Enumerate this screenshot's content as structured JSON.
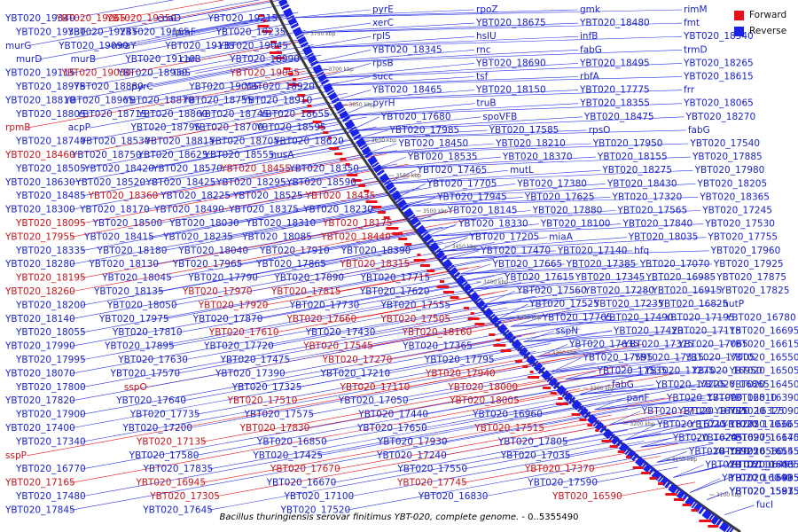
{
  "legend": {
    "forward_label": "Forward",
    "reverse_label": "Reverse",
    "forward_color": "#e8111a",
    "reverse_color": "#1a22e8"
  },
  "caption": {
    "species": "Bacillus thuringiensis serovar finitimus YBT-020, complete genome.",
    "range": " - 0..5355490"
  },
  "ticks": [
    "3750 kbp",
    "3700 kbp",
    "3650 kbp",
    "3600 kbp",
    "3550 kbp",
    "3500 kbp",
    "3450 kbp",
    "3400 kbp",
    "3350 kbp",
    "3300 kbp",
    "3250 kbp",
    "3200 kbp",
    "3150 kbp",
    "3100 kbp"
  ],
  "inner_labels": [
    "YBT020_19340",
    "YBT020_19265",
    "YBT020_19350",
    "coaD",
    "YBT020_19215",
    "YBT020_19330",
    "YBT020_19245",
    "YBT020_19165",
    "rpmF",
    "YBT020_19235",
    "murG",
    "YBT020_19090",
    "mraY",
    "YBT020_19135",
    "YBT020_19045",
    "murD",
    "murB",
    "YBT020_19110",
    "carB",
    "YBT020_18990",
    "YBT020_19115",
    "YBT020_19030",
    "YBT020_18930",
    "ileS",
    "YBT020_19055",
    "YBT020_18975",
    "YBT020_18880",
    "pyrC",
    "YBT020_19015",
    "YBT020_18920",
    "YBT020_18810",
    "YBT020_18965",
    "YBT020_18870",
    "YBT020_18755",
    "YBT020_18910",
    "YBT020_18805",
    "YBT020_18715",
    "YBT020_18860",
    "YBT020_18745",
    "YBT020_18655",
    "rpmB",
    "acpP",
    "YBT020_18795",
    "YBT020_18700",
    "YBT020_18595",
    "YBT020_18740",
    "YBT020_18530",
    "YBT020_18815",
    "YBT020_18705",
    "YBT020_18620",
    "YBT020_18460",
    "YBT020_18750",
    "YBT020_18625",
    "YBT020_18555",
    "nusA",
    "YBT020_18505",
    "YBT020_18420",
    "YBT020_18570",
    "YBT020_18455",
    "YBT020_18350",
    "YBT020_18630",
    "YBT020_18520",
    "YBT020_18425",
    "YBT020_18295",
    "YBT020_18590",
    "YBT020_18485",
    "YBT020_18360",
    "YBT020_18225",
    "YBT020_18525",
    "YBT020_18435",
    "YBT020_18300",
    "YBT020_18170",
    "YBT020_18490",
    "YBT020_18375",
    "YBT020_18230",
    "YBT020_18095",
    "YBT020_18500",
    "YBT020_18030",
    "YBT020_18310",
    "YBT020_18175",
    "YBT020_17955",
    "YBT020_18415",
    "YBT020_18235",
    "YBT020_18085",
    "YBT020_18440",
    "YBT020_18335",
    "YBT020_18180",
    "YBT020_18040",
    "YBT020_17910",
    "YBT020_18390",
    "YBT020_18280",
    "YBT020_18130",
    "YBT020_17965",
    "YBT020_17865",
    "YBT020_18315",
    "YBT020_18195",
    "YBT020_18045",
    "YBT020_17790",
    "YBT020_17890",
    "YBT020_17715",
    "YBT020_18260",
    "YBT020_18135",
    "YBT020_17970",
    "YBT020_17815",
    "YBT020_17620",
    "YBT020_18200",
    "YBT020_18050",
    "YBT020_17920",
    "YBT020_17730",
    "YBT020_17555",
    "YBT020_18140",
    "YBT020_17975",
    "YBT020_17870",
    "YBT020_17660",
    "YBT020_17505",
    "YBT020_18055",
    "YBT020_17810",
    "YBT020_17610",
    "YBT020_17430",
    "YBT020_18160",
    "YBT020_17990",
    "YBT020_17895",
    "YBT020_17720",
    "YBT020_17545",
    "YBT020_17365",
    "YBT020_17995",
    "YBT020_17630",
    "YBT020_17475",
    "YBT020_17270",
    "YBT020_17795",
    "YBT020_18070",
    "YBT020_17570",
    "YBT020_17390",
    "YBT020_17210",
    "YBT020_17940",
    "YBT020_17800",
    "sspO",
    "YBT020_17325",
    "YBT020_17110",
    "YBT020_18000",
    "YBT020_17820",
    "YBT020_17640",
    "YBT020_17510",
    "YBT020_17050",
    "YBT020_18005",
    "YBT020_17900",
    "YBT020_17735",
    "YBT020_17575",
    "YBT020_17440",
    "YBT020_16960",
    "YBT020_17400",
    "YBT020_17200",
    "YBT020_17830",
    "YBT020_17650",
    "YBT020_17515",
    "YBT020_17340",
    "YBT020_17135",
    "YBT020_16850",
    "YBT020_17930",
    "YBT020_17805",
    "sspP",
    "YBT020_17580",
    "YBT020_17425",
    "YBT020_17240",
    "YBT020_17035",
    "YBT020_16770",
    "YBT020_17835",
    "YBT020_17670",
    "YBT020_17550",
    "YBT020_17370",
    "YBT020_17165",
    "YBT020_16945",
    "YBT020_16670",
    "YBT020_17745",
    "YBT020_17590",
    "YBT020_17480",
    "YBT020_17305",
    "YBT020_17100",
    "YBT020_16830",
    "YBT020_16590",
    "YBT020_17845",
    "YBT020_17645",
    "YBT020_17520"
  ],
  "outer_labels": [
    "pyrE",
    "rpoZ",
    "gmk",
    "rimM",
    "xerC",
    "YBT020_18675",
    "YBT020_18480",
    "fmt",
    "rplS",
    "hslU",
    "infB",
    "YBT020_18540",
    "YBT020_18345",
    "rnc",
    "fabG",
    "trmD",
    "rpsB",
    "YBT020_18690",
    "YBT020_18495",
    "YBT020_18265",
    "succ",
    "tsf",
    "rbfA",
    "YBT020_18615",
    "YBT020_18465",
    "YBT020_18150",
    "YBT020_17775",
    "frr",
    "pyrH",
    "truB",
    "YBT020_18355",
    "YBT020_18065",
    "YBT020_17680",
    "spoVFB",
    "YBT020_18475",
    "YBT020_18270",
    "YBT020_17985",
    "YBT020_17585",
    "rpsO",
    "fabG",
    "YBT020_18450",
    "YBT020_18210",
    "YBT020_17950",
    "YBT020_17540",
    "YBT020_18535",
    "YBT020_18370",
    "YBT020_18155",
    "YBT020_17885",
    "YBT020_17465",
    "mutL",
    "YBT020_18275",
    "YBT020_17980",
    "YBT020_17705",
    "YBT020_17380",
    "YBT020_18430",
    "YBT020_18205",
    "YBT020_17945",
    "YBT020_17625",
    "YBT020_17320",
    "YBT020_18365",
    "YBT020_18145",
    "YBT020_17880",
    "YBT020_17565",
    "YBT020_17245",
    "YBT020_18330",
    "YBT020_18100",
    "YBT020_17840",
    "YBT020_17530",
    "YBT020_17205",
    "miaA",
    "YBT020_18035",
    "YBT020_17755",
    "YBT020_17470",
    "YBT020_17140",
    "hfq",
    "YBT020_17960",
    "YBT020_17665",
    "YBT020_17385",
    "YBT020_17070",
    "YBT020_17925",
    "YBT020_17615",
    "YBT020_17345",
    "YBT020_16985",
    "YBT020_17875",
    "YBT020_17560",
    "YBT020_17280",
    "YBT020_16915",
    "YBT020_17825",
    "YBT020_17525",
    "YBT020_17235",
    "YBT020_16825",
    "hutP",
    "YBT020_17765",
    "YBT020_17490",
    "YBT020_17195",
    "YBT020_16780",
    "sspN",
    "YBT020_17420",
    "YBT020_17115",
    "YBT020_16695",
    "YBT020_17635",
    "YBT020_17375",
    "YBT020_17065",
    "YBT020_16615",
    "YBT020_17595",
    "YBT020_17315",
    "YBT020_17005",
    "YBT020_16550",
    "YBT020_17535",
    "YBT020_17275",
    "YBT020_16950",
    "YBT020_16505",
    "fabG",
    "YBT020_17225",
    "YBT020_16865",
    "YBT020_16450",
    "panF",
    "YBT020_17190",
    "YBT020_16810",
    "YBT020_16390",
    "YBT020_17120",
    "YBT020_16775",
    "YBT020_16325",
    "YBT020_17090",
    "YBT020_16715",
    "YBT020_16275",
    "YBT020_17030",
    "YBT020_16665",
    "YBT020_16245",
    "YBT020_16975",
    "YBT020_16640",
    "YBT020_16175",
    "YBT020_16925",
    "YBT020_16580",
    "YBT020_16155",
    "YBT020_16545",
    "YBT020_16110",
    "YBT020_16495",
    "YBT020_16065",
    "YBT020_16435",
    "YBT020_16040",
    "YBT020_16405",
    "YBT020_15995",
    "YBT020_16335",
    "YBT020_15975",
    "YBT020_15935",
    "YBT020_15915",
    "YBT020_15875",
    "fucI"
  ]
}
